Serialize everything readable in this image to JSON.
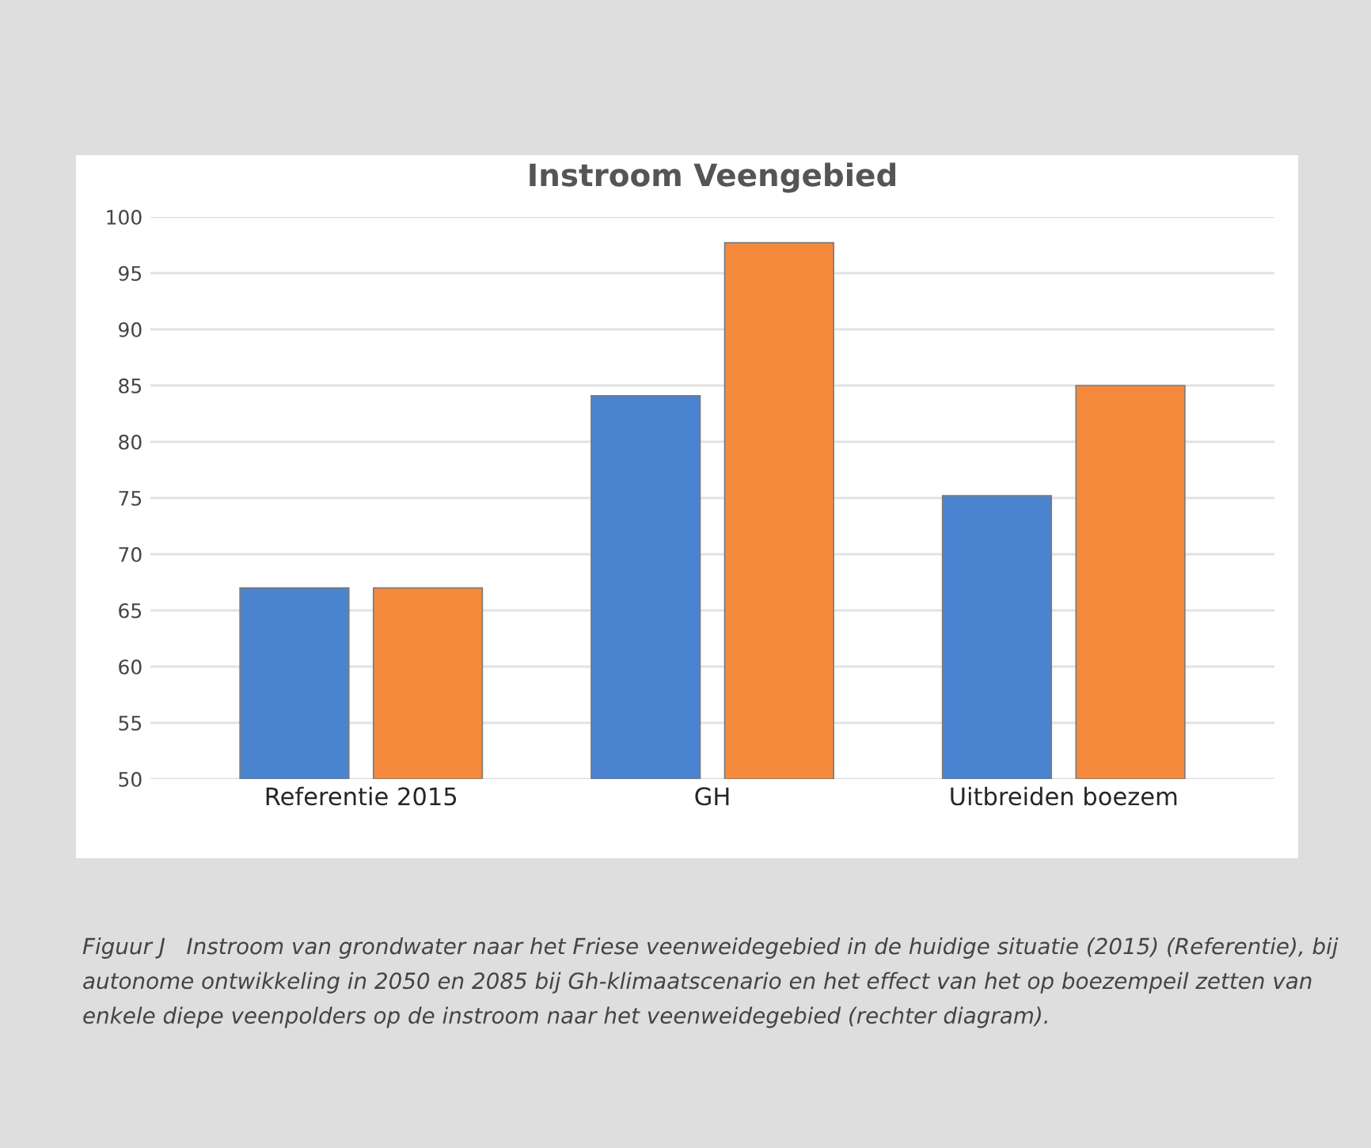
{
  "chart_data": {
    "type": "bar",
    "title": "Instroom Veengebied",
    "categories": [
      "Referentie 2015",
      "GH",
      "Uitbreiden boezem"
    ],
    "series": [
      {
        "color": "#4a84d0",
        "values": [
          67,
          84.1,
          75.2
        ]
      },
      {
        "color": "#f58a3c",
        "values": [
          67,
          97.7,
          85.0
        ]
      }
    ],
    "ylim": [
      50,
      100
    ],
    "yticks": [
      50,
      55,
      60,
      65,
      70,
      75,
      80,
      85,
      90,
      95,
      100
    ],
    "grid": "y",
    "annotations": [
      "Figuur J   Instroom van grondwater naar het Friese veenweidegebied in de huidige situatie (2015) (Referentie), bij autonome ontwikkeling in 2050 en 2085 bij Gh-klimaatscenario en het effect van het op boezempeil zetten van enkele diepe veenpolders op de instroom naar het veenweidegebied (rechter diagram)."
    ]
  }
}
